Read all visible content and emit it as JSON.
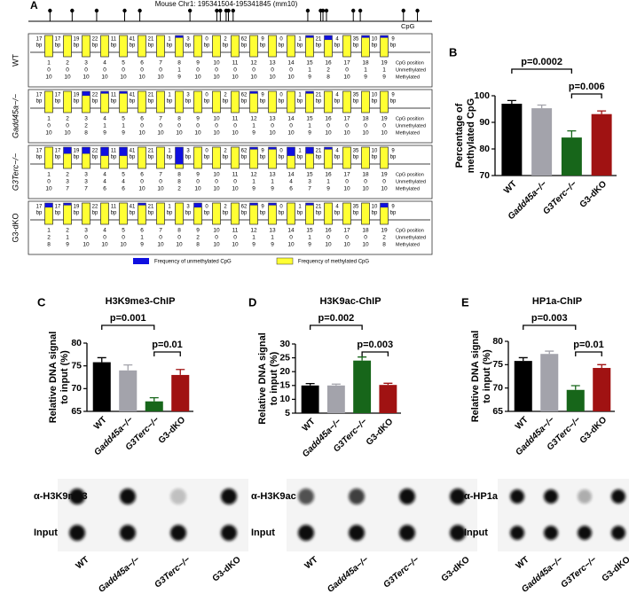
{
  "panel_a": {
    "panel": "A",
    "title": "Mouse Chr1: 195341504-195341845 (mm10)",
    "cpg_label": "CpG",
    "bp_unit": "bp",
    "bp_spacing": [
      17,
      17,
      19,
      22,
      11,
      41,
      21,
      1,
      3,
      0,
      2,
      62,
      9,
      0,
      1,
      21,
      4,
      35,
      10,
      9
    ],
    "positions": [
      1,
      2,
      3,
      4,
      5,
      6,
      7,
      8,
      9,
      10,
      11,
      12,
      13,
      14,
      15,
      16,
      17,
      18,
      19
    ],
    "row_labels": [
      "CpG position",
      "Unmethylated",
      "Methylated"
    ],
    "unmethylated_color": "#1010e0",
    "methylated_color": "#ffff33",
    "legend": [
      "Frequency of unmethylated CpG",
      "Frequency of methylated CpG"
    ],
    "rows": [
      {
        "label": "WT",
        "unmethylated": [
          0,
          0,
          0,
          0,
          0,
          0,
          0,
          1,
          0,
          0,
          0,
          0,
          0,
          0,
          1,
          2,
          0,
          1,
          1
        ],
        "methylated": [
          10,
          10,
          10,
          10,
          10,
          10,
          10,
          9,
          10,
          10,
          10,
          10,
          10,
          10,
          9,
          8,
          10,
          9,
          9
        ]
      },
      {
        "label": "Gadd45a−/−",
        "unmethylated": [
          0,
          0,
          2,
          1,
          1,
          0,
          0,
          0,
          0,
          0,
          0,
          1,
          0,
          0,
          1,
          0,
          0,
          0,
          0
        ],
        "methylated": [
          10,
          10,
          8,
          9,
          9,
          10,
          10,
          10,
          10,
          10,
          10,
          9,
          10,
          10,
          9,
          10,
          10,
          10,
          10
        ]
      },
      {
        "label": "G3Terc−/−",
        "unmethylated": [
          0,
          3,
          3,
          4,
          4,
          0,
          0,
          8,
          0,
          0,
          0,
          1,
          1,
          4,
          3,
          1,
          0,
          0,
          0
        ],
        "methylated": [
          10,
          7,
          7,
          6,
          6,
          10,
          10,
          2,
          10,
          10,
          10,
          9,
          9,
          6,
          7,
          9,
          10,
          10,
          10
        ]
      },
      {
        "label": "G3-dKO",
        "unmethylated": [
          2,
          1,
          0,
          0,
          0,
          1,
          0,
          0,
          2,
          0,
          0,
          1,
          1,
          0,
          1,
          0,
          0,
          0,
          2
        ],
        "methylated": [
          8,
          9,
          10,
          10,
          10,
          9,
          10,
          10,
          8,
          10,
          10,
          9,
          9,
          10,
          9,
          10,
          10,
          10,
          8
        ]
      }
    ]
  },
  "chart_data": [
    {
      "type": "bar",
      "panel": "B",
      "y_label": [
        "Percentage of",
        "methylated CpG"
      ],
      "categories": [
        "WT",
        "Gadd45a−/−",
        "G3Terc−/−",
        "G3-dKO"
      ],
      "colors": [
        "#000000",
        "#a3a3ab",
        "#17661a",
        "#a01212"
      ],
      "values": [
        97,
        95.3,
        84.3,
        93.1
      ],
      "errors": [
        1.2,
        1.2,
        2.5,
        1.2
      ],
      "ylim": [
        70,
        100
      ],
      "yticks": [
        70,
        80,
        90,
        100
      ],
      "significance": [
        {
          "between": [
            "WT",
            "G3Terc−/−"
          ],
          "label": "p=0.0002"
        },
        {
          "between": [
            "G3Terc−/−",
            "G3-dKO"
          ],
          "label": "p=0.006"
        }
      ]
    },
    {
      "type": "bar",
      "panel": "C",
      "title": "H3K9me3-ChIP",
      "y_label": [
        "Relative DNA signal",
        "to input (%)"
      ],
      "categories": [
        "WT",
        "Gadd45a−/−",
        "G3Terc−/−",
        "G3-dKO"
      ],
      "colors": [
        "#000000",
        "#a3a3ab",
        "#17661a",
        "#a01212"
      ],
      "values": [
        75.8,
        74.0,
        67.2,
        73.0
      ],
      "errors": [
        1.0,
        1.2,
        0.8,
        1.2
      ],
      "ylim": [
        65,
        80
      ],
      "yticks": [
        65,
        70,
        75,
        80
      ],
      "significance": [
        {
          "between": [
            "WT",
            "G3Terc−/−"
          ],
          "label": "p=0.001"
        },
        {
          "between": [
            "G3Terc−/−",
            "G3-dKO"
          ],
          "label": "p=0.01"
        }
      ],
      "blot_rows": [
        "α-H3K9me3",
        "Input"
      ]
    },
    {
      "type": "bar",
      "panel": "D",
      "title": "H3K9ac-ChIP",
      "y_label": [
        "Relative DNA signal",
        "to input (%)"
      ],
      "categories": [
        "WT",
        "Gadd45a−/−",
        "G3Terc−/−",
        "G3-dKO"
      ],
      "colors": [
        "#000000",
        "#a3a3ab",
        "#17661a",
        "#a01212"
      ],
      "values": [
        15.0,
        15.0,
        24.0,
        15.2
      ],
      "errors": [
        0.7,
        0.5,
        1.3,
        0.6
      ],
      "ylim": [
        5,
        30
      ],
      "yticks": [
        5,
        10,
        15,
        20,
        25,
        30
      ],
      "significance": [
        {
          "between": [
            "WT",
            "G3Terc−/−"
          ],
          "label": "p=0.002"
        },
        {
          "between": [
            "G3Terc−/−",
            "G3-dKO"
          ],
          "label": "p=0.003"
        }
      ],
      "blot_rows": [
        "α-H3K9ac",
        "Input"
      ]
    },
    {
      "type": "bar",
      "panel": "E",
      "title": "HP1a-ChIP",
      "y_label": [
        "Relative DNA signal",
        "to input (%)"
      ],
      "categories": [
        "WT",
        "Gadd45a−/−",
        "G3Terc−/−",
        "G3-dKO"
      ],
      "colors": [
        "#000000",
        "#a3a3ab",
        "#17661a",
        "#a01212"
      ],
      "values": [
        75.8,
        77.3,
        69.6,
        74.3
      ],
      "errors": [
        0.7,
        0.6,
        0.9,
        0.7
      ],
      "ylim": [
        65,
        80
      ],
      "yticks": [
        65,
        70,
        75,
        80
      ],
      "significance": [
        {
          "between": [
            "WT",
            "G3Terc−/−"
          ],
          "label": "p=0.003"
        },
        {
          "between": [
            "G3Terc−/−",
            "G3-dKO"
          ],
          "label": "p=0.01"
        }
      ],
      "blot_rows": [
        "α-HP1a",
        "Input"
      ]
    }
  ]
}
